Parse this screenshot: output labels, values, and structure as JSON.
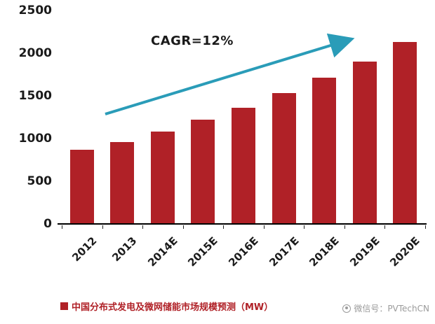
{
  "chart_data": {
    "type": "bar",
    "categories": [
      "2012",
      "2013",
      "2014E",
      "2015E",
      "2016E",
      "2017E",
      "2018E",
      "2019E",
      "2020E"
    ],
    "values": [
      870,
      960,
      1080,
      1220,
      1360,
      1530,
      1710,
      1900,
      2130
    ],
    "title": "",
    "xlabel": "",
    "ylabel": "",
    "ylim": [
      0,
      2500
    ],
    "yticks": [
      0,
      500,
      1000,
      1500,
      2000,
      2500
    ],
    "grid": "off",
    "legend_position": "bottom",
    "legend": "中国分布式发电及微网储能市场规模预测（MW）",
    "annotation": "CAGR=12%",
    "bar_color": "#b02127",
    "arrow_color": "#2a9cb8",
    "axis_color": "#000000",
    "label_color": "#1a1a1a"
  },
  "watermark": {
    "text": "微信号：PVTechCN"
  }
}
